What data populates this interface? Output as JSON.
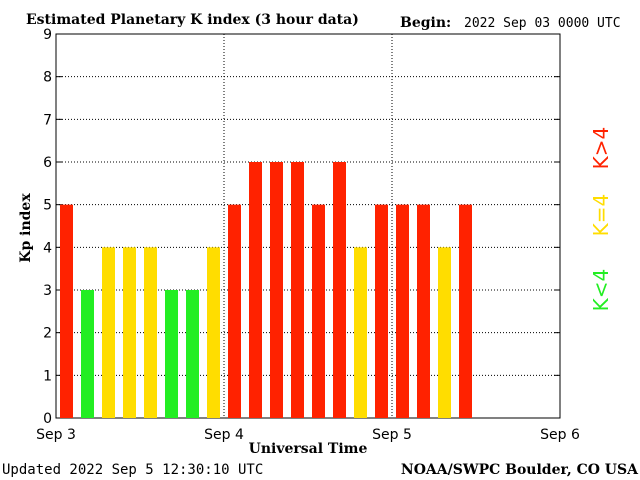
{
  "header": {
    "title": "Estimated Planetary K index (3 hour data)",
    "begin_label": "Begin:",
    "begin_value": "2022 Sep 03 0000 UTC"
  },
  "footer": {
    "updated": "Updated 2022 Sep  5 12:30:10 UTC",
    "source": "NOAA/SWPC Boulder, CO USA"
  },
  "legend": {
    "green_label": "K<4",
    "yellow_label": "K=4",
    "red_label": "K>4"
  },
  "colors": {
    "green": "#22ee22",
    "yellow": "#ffdd00",
    "red": "#ff2200"
  },
  "chart_data": {
    "type": "bar",
    "title": "Estimated Planetary K index (3 hour data)",
    "xlabel": "Universal Time",
    "ylabel": "Kp index",
    "ylim": [
      0,
      9
    ],
    "yticks": [
      "0",
      "1",
      "2",
      "3",
      "4",
      "5",
      "6",
      "7",
      "8",
      "9"
    ],
    "xticks": [
      "Sep 3",
      "Sep 4",
      "Sep 5",
      "Sep 6"
    ],
    "slots_total": 24,
    "grid": true,
    "values": [
      5,
      3,
      4,
      4,
      4,
      3,
      3,
      4,
      5,
      6,
      6,
      6,
      5,
      6,
      4,
      5,
      5,
      5,
      4,
      5
    ]
  }
}
